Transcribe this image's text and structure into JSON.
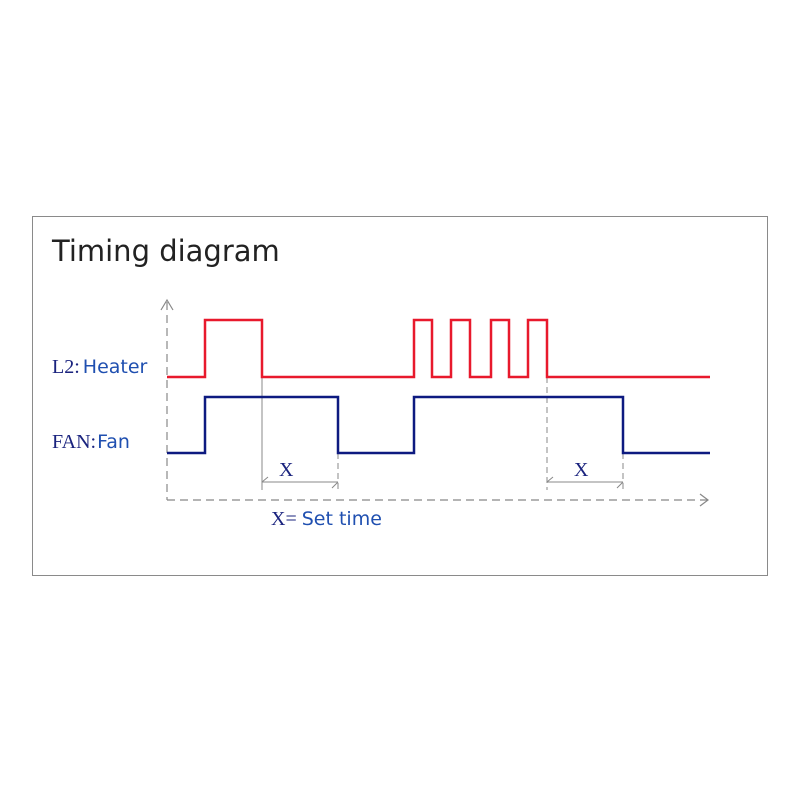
{
  "title": "Timing diagram",
  "signals": [
    {
      "code": "L2:",
      "name": "Heater",
      "color": "#e8192c"
    },
    {
      "code": "FAN:",
      "name": "Fan",
      "color": "#0d1a80"
    }
  ],
  "delay_label": "X",
  "legend": {
    "symbol": "X=",
    "text": "Set time"
  }
}
